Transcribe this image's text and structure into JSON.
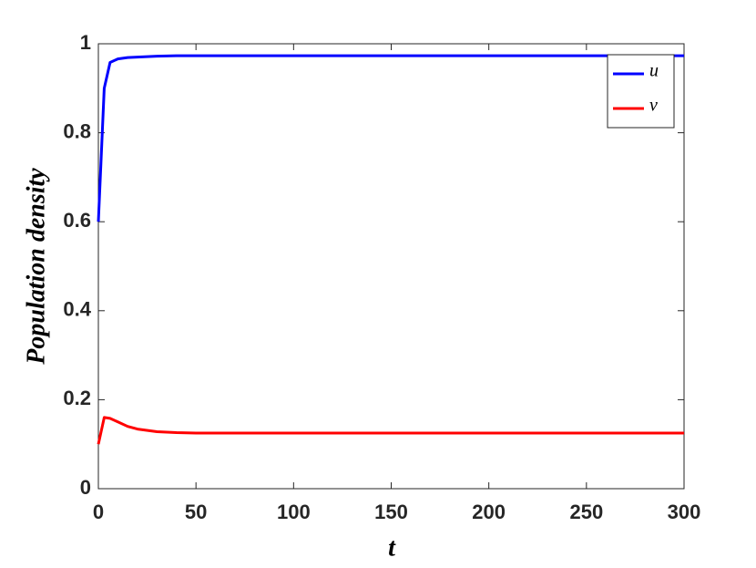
{
  "chart_data": {
    "type": "line",
    "xlabel": "t",
    "ylabel": "Population  density",
    "x": [
      0,
      3,
      6,
      10,
      15,
      20,
      30,
      40,
      50,
      75,
      100,
      150,
      200,
      250,
      300
    ],
    "series": [
      {
        "name": "u",
        "color": "#0000ff",
        "values": [
          0.6,
          0.9,
          0.958,
          0.966,
          0.969,
          0.97,
          0.972,
          0.973,
          0.973,
          0.973,
          0.973,
          0.973,
          0.973,
          0.973,
          0.973
        ]
      },
      {
        "name": "v",
        "color": "#ff0000",
        "values": [
          0.1,
          0.16,
          0.158,
          0.15,
          0.14,
          0.134,
          0.128,
          0.126,
          0.125,
          0.125,
          0.125,
          0.125,
          0.125,
          0.125,
          0.125
        ]
      }
    ],
    "xlim": [
      0,
      300
    ],
    "xticks": [
      0,
      50,
      100,
      150,
      200,
      250,
      300
    ],
    "ylim": [
      0,
      1
    ],
    "yticks": [
      0,
      0.2,
      0.4,
      0.6,
      0.8,
      1
    ],
    "grid": false,
    "legend": "top-right"
  }
}
